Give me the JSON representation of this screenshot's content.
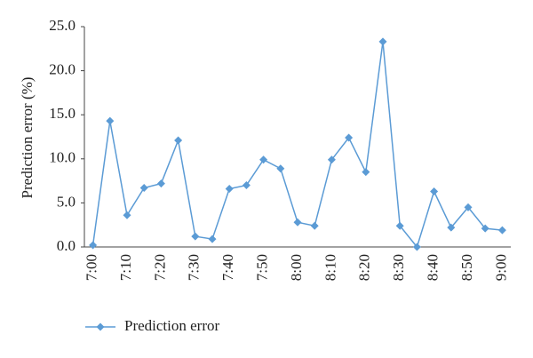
{
  "chart_data": {
    "type": "line",
    "y_label": "Prediction error (%)",
    "categories": [
      "7:00",
      null,
      "7:10",
      null,
      "7:20",
      null,
      "7:30",
      null,
      "7:40",
      null,
      "7:50",
      null,
      "8:00",
      null,
      "8:10",
      null,
      "8:20",
      null,
      "8:30",
      null,
      "8:40",
      null,
      "8:50",
      null,
      "9:00"
    ],
    "series": [
      {
        "name": "Prediction error",
        "color": "#5b9bd5",
        "values": [
          0.2,
          14.3,
          3.6,
          6.7,
          7.2,
          12.1,
          1.2,
          0.9,
          6.6,
          7.0,
          9.9,
          8.9,
          2.8,
          2.4,
          9.9,
          12.4,
          8.5,
          23.3,
          2.4,
          0.0,
          6.3,
          2.2,
          4.5,
          2.1,
          1.9
        ]
      }
    ],
    "ylim": [
      0,
      25
    ],
    "yticks": [
      {
        "value": 0,
        "label": "0.0"
      },
      {
        "value": 5,
        "label": "5.0"
      },
      {
        "value": 10,
        "label": "10.0"
      },
      {
        "value": 15,
        "label": "15.0"
      },
      {
        "value": 20,
        "label": "20.0"
      },
      {
        "value": 25,
        "label": "25.0"
      }
    ],
    "grid": false,
    "legend": "bottom-left"
  }
}
